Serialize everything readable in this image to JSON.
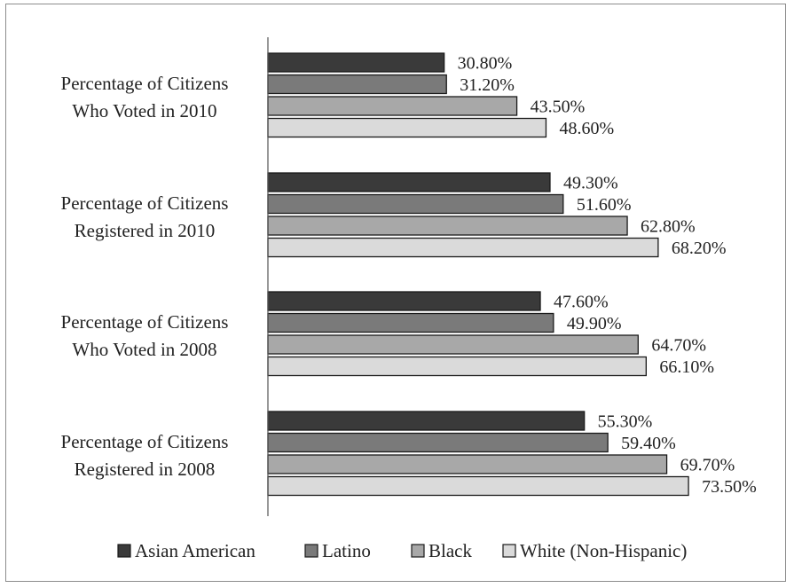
{
  "chart_data": {
    "type": "bar",
    "orientation": "horizontal",
    "title": "",
    "xlabel": "",
    "ylabel": "",
    "xlim": [
      0,
      100
    ],
    "grid": false,
    "legend_position": "bottom",
    "categories": [
      [
        "Percentage of Citizens",
        "Who Voted in 2010"
      ],
      [
        "Percentage of Citizens",
        "Registered in 2010"
      ],
      [
        "Percentage of Citizens",
        "Who Voted in 2008"
      ],
      [
        "Percentage of Citizens",
        "Registered in 2008"
      ]
    ],
    "series": [
      {
        "name": "Asian American",
        "color": "#3a3a3a",
        "values": [
          30.8,
          49.3,
          47.6,
          55.3
        ],
        "labels": [
          "30.80%",
          "49.30%",
          "47.60%",
          "55.30%"
        ]
      },
      {
        "name": "Latino",
        "color": "#7a7a7a",
        "values": [
          31.2,
          51.6,
          49.9,
          59.4
        ],
        "labels": [
          "31.20%",
          "51.60%",
          "49.90%",
          "59.40%"
        ]
      },
      {
        "name": "Black",
        "color": "#a8a8a8",
        "values": [
          43.5,
          62.8,
          64.7,
          69.7
        ],
        "labels": [
          "43.50%",
          "62.80%",
          "64.70%",
          "69.70%"
        ]
      },
      {
        "name": "White (Non-Hispanic)",
        "color": "#dadada",
        "values": [
          48.6,
          68.2,
          66.1,
          73.5
        ],
        "labels": [
          "48.60%",
          "68.20%",
          "66.10%",
          "73.50%"
        ]
      }
    ]
  }
}
